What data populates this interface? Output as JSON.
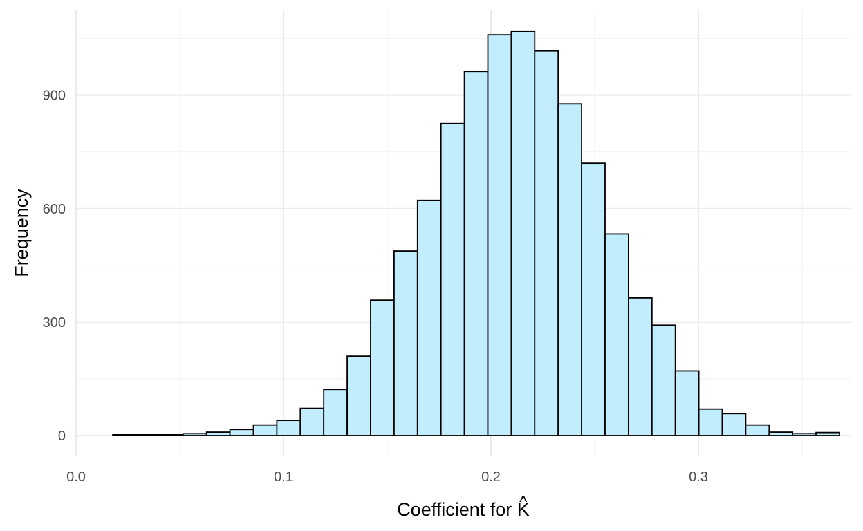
{
  "chart_data": {
    "type": "bar",
    "subtype": "histogram",
    "title": "",
    "xlabel": "Coefficient for K̂",
    "xlabel_main": "Coefficient for ",
    "xlabel_symbol": "K",
    "xlabel_accent": "^",
    "ylabel": "Frequency",
    "xlim": [
      0.0,
      0.36
    ],
    "ylim": [
      0,
      1080
    ],
    "x_ticks": [
      0.0,
      0.1,
      0.2,
      0.3
    ],
    "x_tick_labels": [
      "0.0",
      "0.1",
      "0.2",
      "0.3"
    ],
    "y_ticks": [
      0,
      300,
      600,
      900
    ],
    "y_tick_labels": [
      "0",
      "300",
      "600",
      "900"
    ],
    "grid": true,
    "bar_fill": "#c1edfc",
    "bar_outline": "#000000",
    "bin_width": 0.0113,
    "bin_start": 0.0177,
    "values": [
      2,
      2,
      3,
      5,
      9,
      16,
      28,
      40,
      72,
      122,
      210,
      358,
      488,
      622,
      825,
      963,
      1060,
      1068,
      1017,
      877,
      720,
      533,
      364,
      292,
      171,
      70,
      58,
      28,
      9,
      5,
      8
    ]
  }
}
